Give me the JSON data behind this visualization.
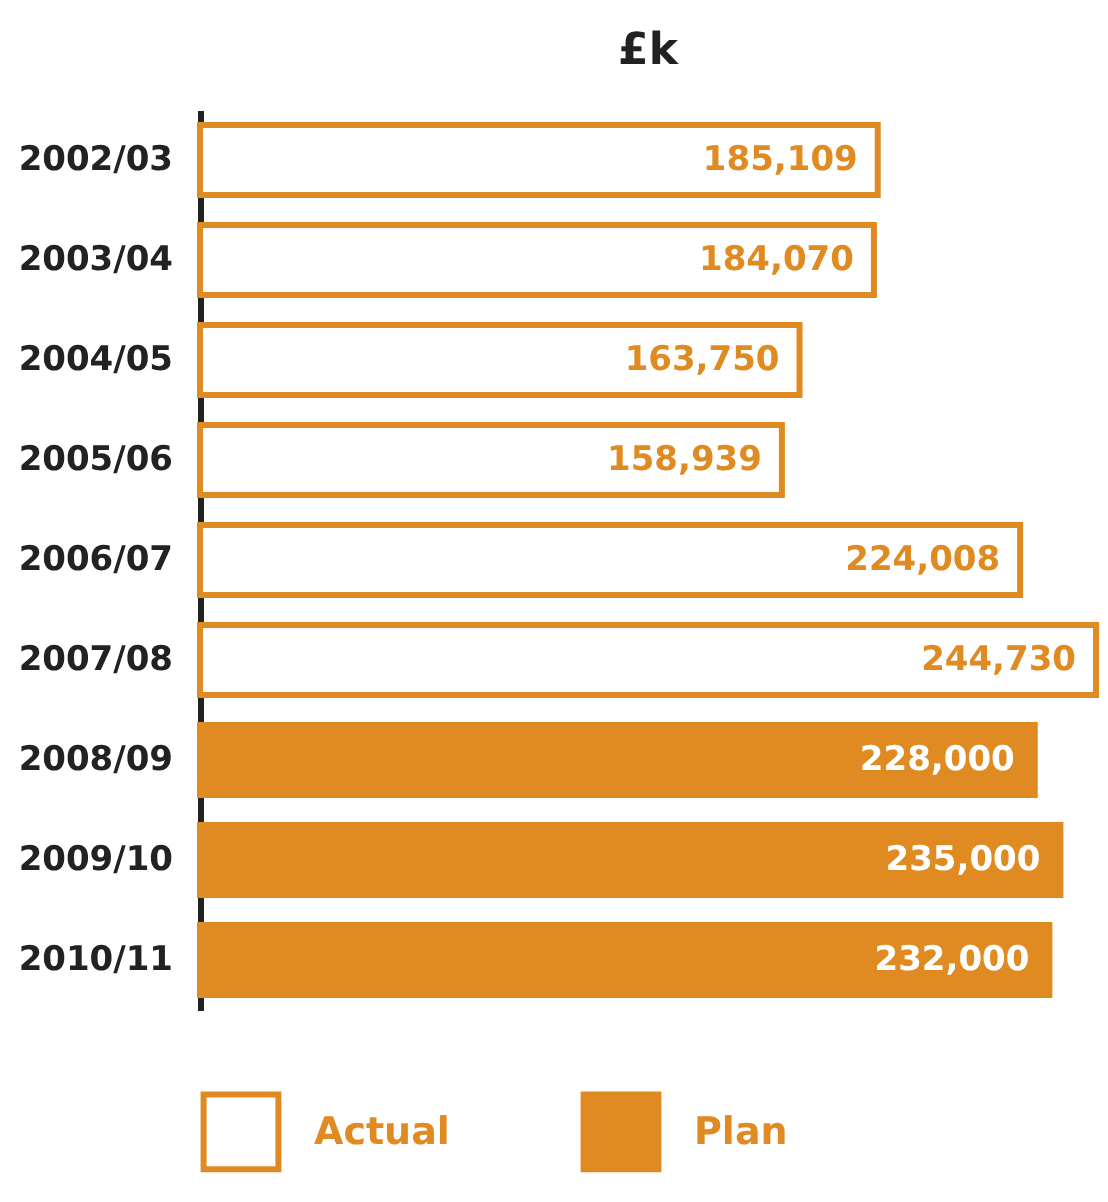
{
  "chart_data": {
    "type": "bar",
    "orientation": "horizontal",
    "title": "£k",
    "categories": [
      "2002/03",
      "2003/04",
      "2004/05",
      "2005/06",
      "2006/07",
      "2007/08",
      "2008/09",
      "2009/10",
      "2010/11"
    ],
    "series": [
      {
        "name": "Actual",
        "color": "#e08a22",
        "values": [
          185109,
          184070,
          163750,
          158939,
          224008,
          244730,
          null,
          null,
          null
        ],
        "value_labels": [
          "185,109",
          "184,070",
          "163,750",
          "158,939",
          "224,008",
          "244,730",
          null,
          null,
          null
        ]
      },
      {
        "name": "Plan",
        "color": "#e08a22",
        "values": [
          null,
          null,
          null,
          null,
          null,
          null,
          228000,
          235000,
          232000
        ],
        "value_labels": [
          null,
          null,
          null,
          null,
          null,
          null,
          "228,000",
          "235,000",
          "232,000"
        ]
      }
    ],
    "legend": "bottom"
  }
}
